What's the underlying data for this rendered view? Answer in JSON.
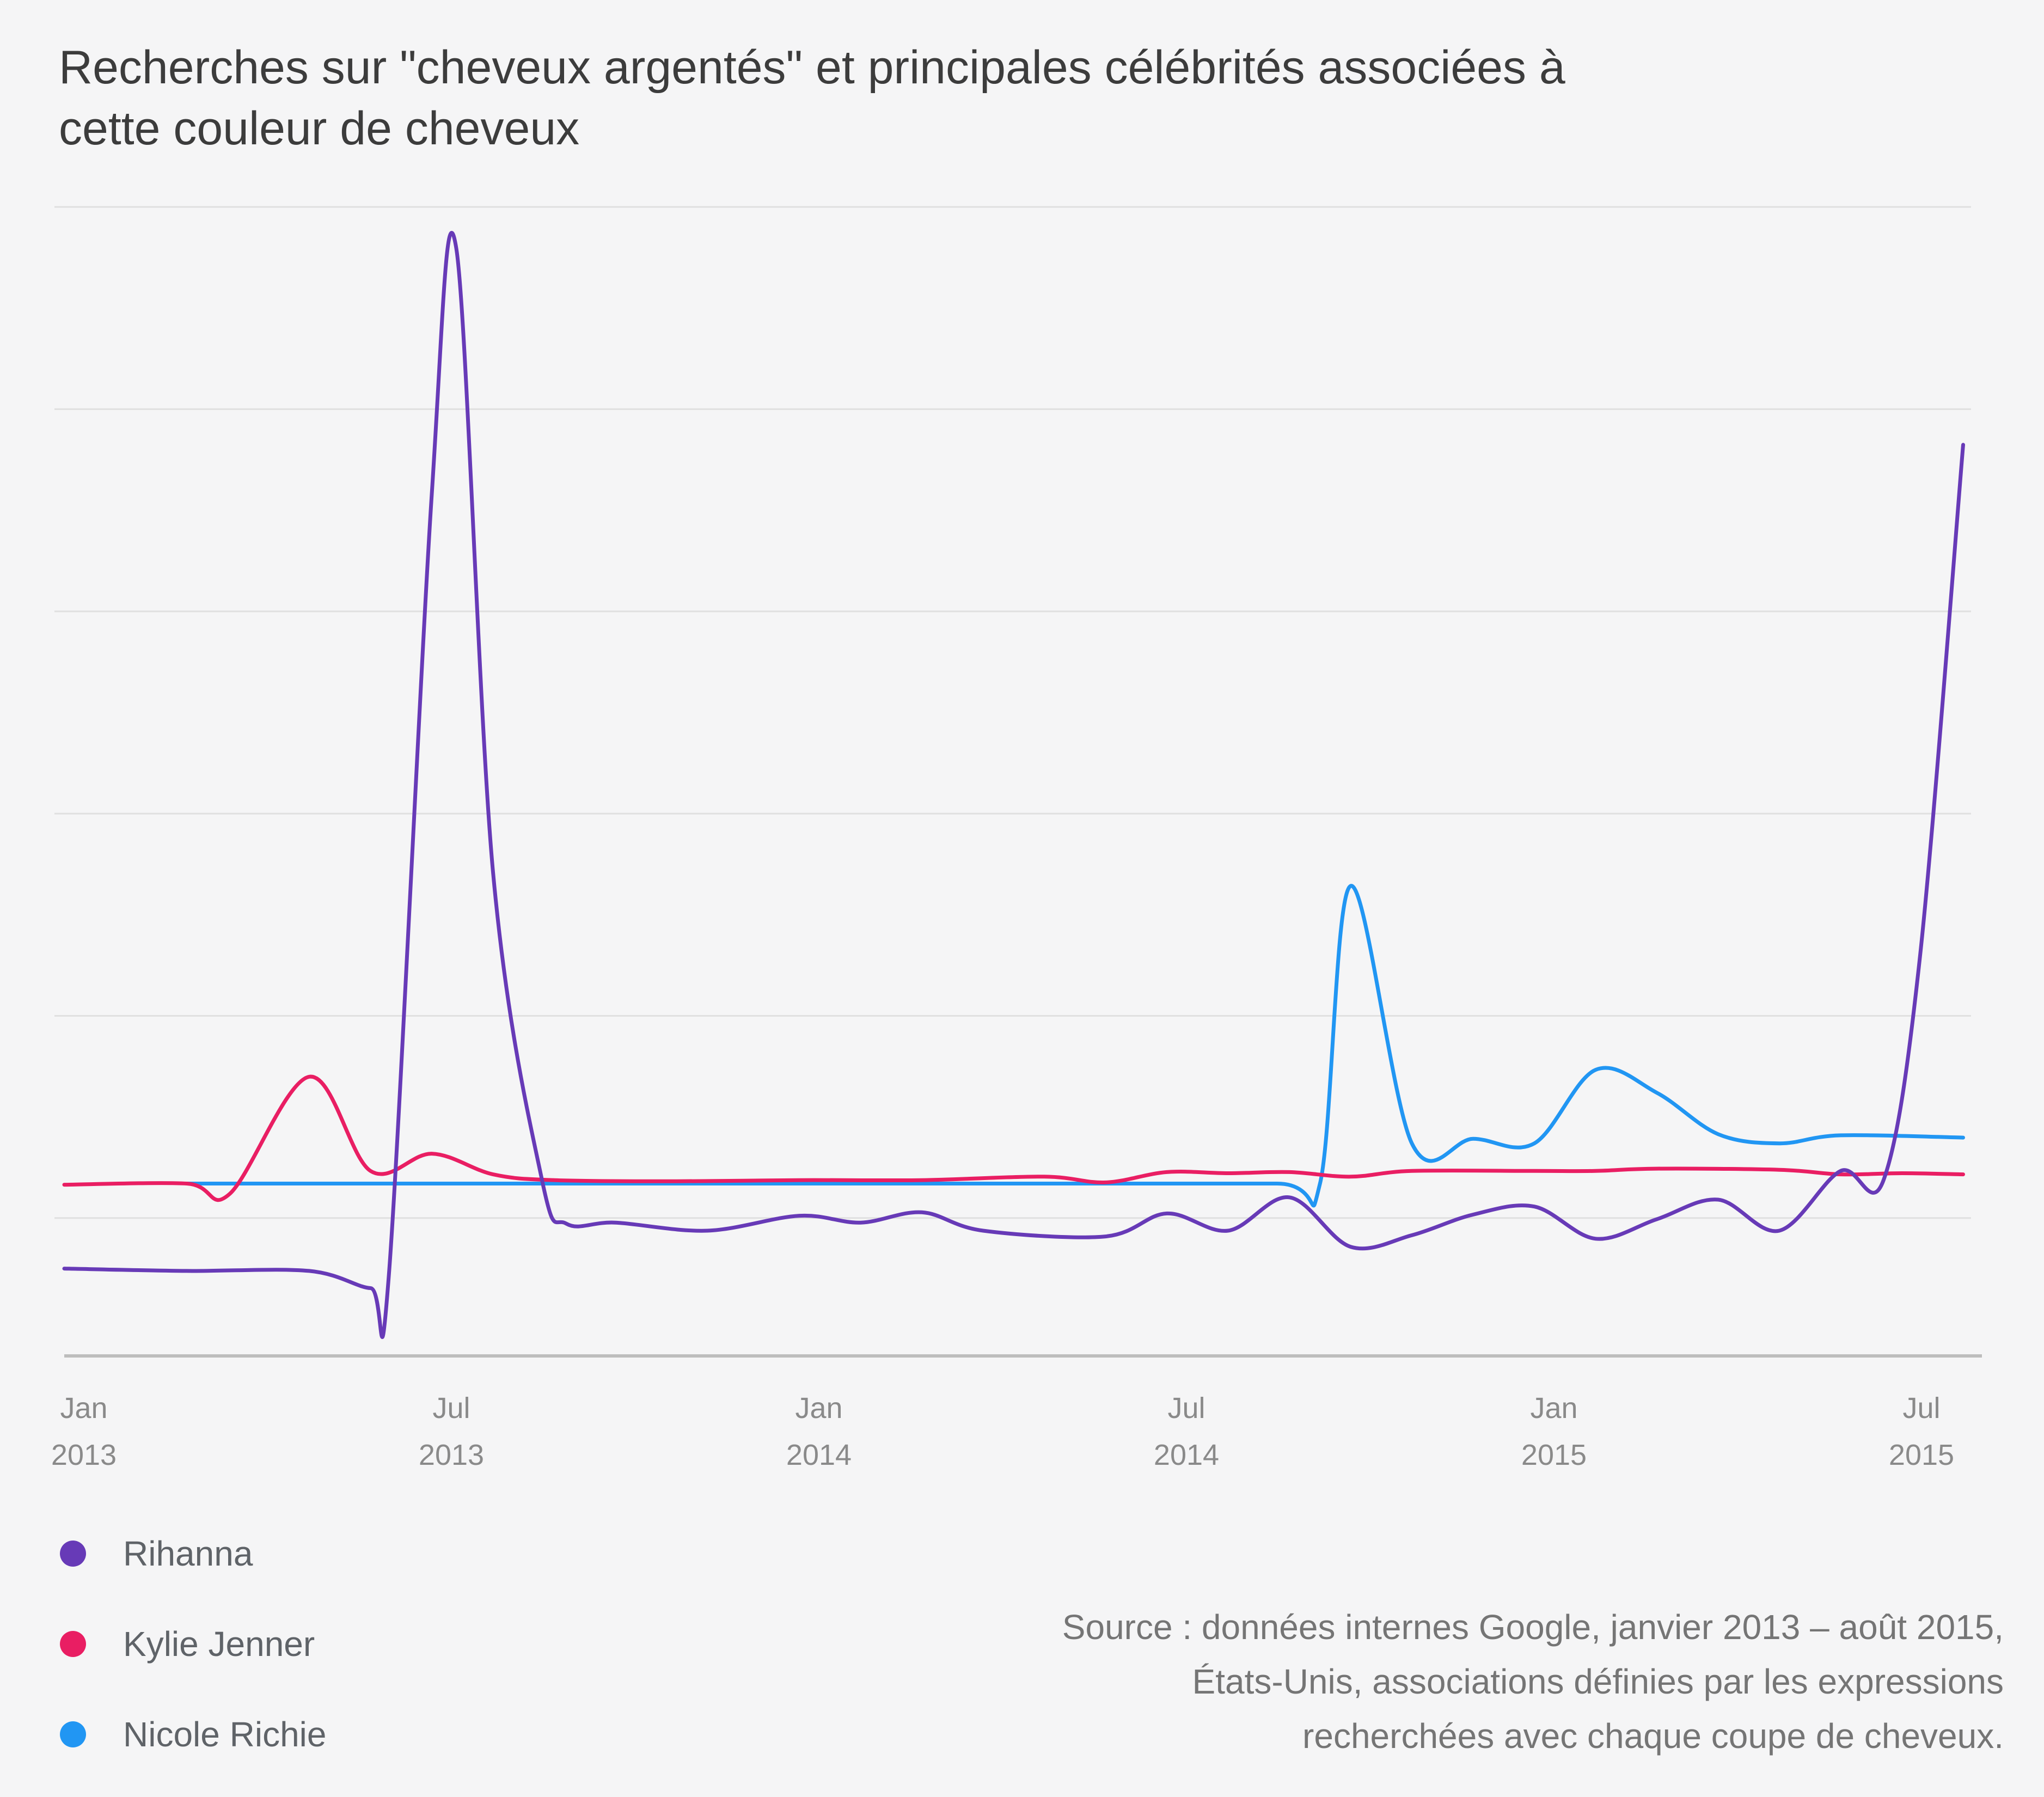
{
  "title": [
    "Recherches sur \"cheveux argentés\" et principales célébrités associées à",
    "cette couleur de cheveux"
  ],
  "source_lines": [
    "Source : données internes Google, janvier 2013 – août 2015,",
    "États-Unis, associations définies par les expressions",
    "recherchées avec chaque coupe de cheveux."
  ],
  "chart_data": {
    "type": "line",
    "x_ticks": [
      {
        "month": 0,
        "label": "Jan",
        "year": "2013"
      },
      {
        "month": 6,
        "label": "Jul",
        "year": "2013"
      },
      {
        "month": 12,
        "label": "Jan",
        "year": "2014"
      },
      {
        "month": 18,
        "label": "Jul",
        "year": "2014"
      },
      {
        "month": 24,
        "label": "Jan",
        "year": "2015"
      },
      {
        "month": 30,
        "label": "Jul",
        "year": "2015"
      }
    ],
    "xlim": [
      0,
      31
    ],
    "ylim": [
      0,
      100
    ],
    "y_gridlines": [
      12,
      29.6,
      47.2,
      64.8,
      82.4,
      100
    ],
    "y_tick_labels": false,
    "legend_position": "bottom-left",
    "series": [
      {
        "name": "Rihanna",
        "color": "#673ab7",
        "points": [
          [
            0,
            7.6
          ],
          [
            2,
            7.4
          ],
          [
            4,
            7.4
          ],
          [
            5.0,
            5.9
          ],
          [
            5.3,
            7.1
          ],
          [
            6.0,
            75
          ],
          [
            6.4,
            96.4
          ],
          [
            7.0,
            42.1
          ],
          [
            7.8,
            15.3
          ],
          [
            8.2,
            11.5
          ],
          [
            9,
            11.6
          ],
          [
            10.5,
            10.9
          ],
          [
            12,
            12.2
          ],
          [
            13,
            11.6
          ],
          [
            14,
            12.5
          ],
          [
            15,
            10.9
          ],
          [
            17,
            10.4
          ],
          [
            18,
            12.4
          ],
          [
            19,
            10.9
          ],
          [
            20,
            13.8
          ],
          [
            21,
            9.5
          ],
          [
            22,
            10.5
          ],
          [
            23,
            12.3
          ],
          [
            24,
            13.0
          ],
          [
            25,
            10.2
          ],
          [
            26,
            11.9
          ],
          [
            27,
            13.6
          ],
          [
            28,
            10.9
          ],
          [
            29,
            16.1
          ],
          [
            29.7,
            15.3
          ],
          [
            30.3,
            35
          ],
          [
            31,
            79.3
          ]
        ]
      },
      {
        "name": "Kylie Jenner",
        "color": "#e91e63",
        "points": [
          [
            0,
            14.9
          ],
          [
            2,
            15.0
          ],
          [
            2.7,
            14.1
          ],
          [
            4.0,
            24.3
          ],
          [
            5.0,
            16.1
          ],
          [
            6,
            17.6
          ],
          [
            7,
            15.8
          ],
          [
            8,
            15.3
          ],
          [
            10,
            15.2
          ],
          [
            12,
            15.3
          ],
          [
            14,
            15.3
          ],
          [
            16,
            15.6
          ],
          [
            17,
            15.1
          ],
          [
            18,
            16.0
          ],
          [
            19,
            15.9
          ],
          [
            20,
            16.0
          ],
          [
            21,
            15.6
          ],
          [
            22,
            16.1
          ],
          [
            24,
            16.1
          ],
          [
            25,
            16.1
          ],
          [
            26,
            16.3
          ],
          [
            28,
            16.2
          ],
          [
            29,
            15.8
          ],
          [
            30,
            15.9
          ],
          [
            31,
            15.8
          ]
        ]
      },
      {
        "name": "Nicole Richie",
        "color": "#2196f3",
        "points": [
          [
            2,
            15.0
          ],
          [
            10,
            15.0
          ],
          [
            16,
            15.0
          ],
          [
            19.8,
            15.0
          ],
          [
            20.5,
            15.0
          ],
          [
            21.0,
            40.9
          ],
          [
            22.0,
            18.5
          ],
          [
            23.0,
            18.9
          ],
          [
            24.0,
            18.5
          ],
          [
            25.0,
            24.9
          ],
          [
            26.0,
            22.9
          ],
          [
            27.0,
            19.3
          ],
          [
            28.0,
            18.5
          ],
          [
            29.0,
            19.2
          ],
          [
            31,
            19.0
          ]
        ]
      }
    ]
  }
}
